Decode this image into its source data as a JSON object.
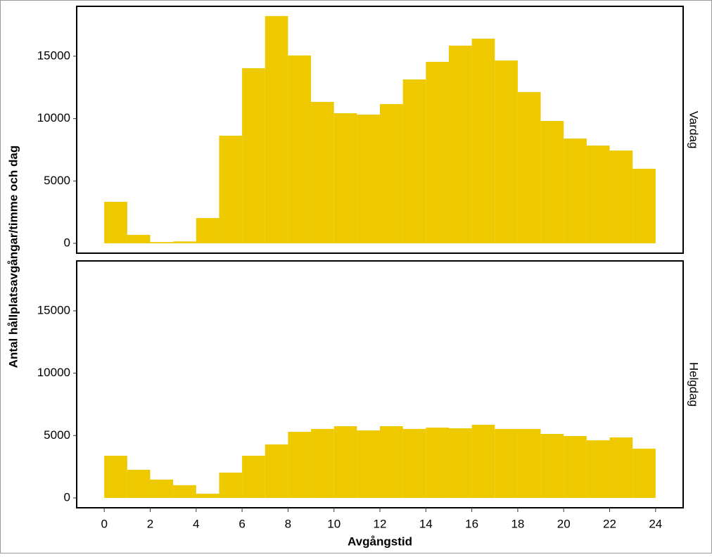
{
  "chart_data": [
    {
      "type": "histogram",
      "facet_label": "Vardag",
      "ylabel": "Antal hållplatsavgångar/timme och dag",
      "bins": [
        0,
        1,
        2,
        3,
        4,
        5,
        6,
        7,
        8,
        9,
        10,
        11,
        12,
        13,
        14,
        15,
        16,
        17,
        18,
        19,
        20,
        21,
        22,
        23,
        24
      ],
      "values": [
        3330,
        680,
        100,
        150,
        2030,
        8630,
        14040,
        18220,
        15060,
        11340,
        10430,
        10320,
        11170,
        13140,
        14550,
        15850,
        16410,
        14660,
        12130,
        9810,
        8400,
        7840,
        7440,
        5980
      ],
      "color": "#eec900",
      "xlim": [
        -1.2,
        25.2
      ],
      "ylim": [
        -790,
        19000
      ],
      "yticks": [
        0,
        5000,
        10000,
        15000
      ]
    },
    {
      "type": "histogram",
      "facet_label": "Helgdag",
      "xlabel": "Avgångstid",
      "bins": [
        0,
        1,
        2,
        3,
        4,
        5,
        6,
        7,
        8,
        9,
        10,
        11,
        12,
        13,
        14,
        15,
        16,
        17,
        18,
        19,
        20,
        21,
        22,
        23,
        24
      ],
      "values": [
        3380,
        2260,
        1470,
        1020,
        340,
        2030,
        3380,
        4290,
        5300,
        5530,
        5750,
        5410,
        5750,
        5530,
        5640,
        5580,
        5870,
        5530,
        5530,
        5130,
        4960,
        4620,
        4850,
        3950
      ],
      "color": "#eec900",
      "xlim": [
        -1.2,
        25.2
      ],
      "ylim": [
        -790,
        19000
      ],
      "yticks": [
        0,
        5000,
        10000,
        15000
      ],
      "xticks": [
        0,
        2,
        4,
        6,
        8,
        10,
        12,
        14,
        16,
        18,
        20,
        22,
        24
      ]
    }
  ]
}
